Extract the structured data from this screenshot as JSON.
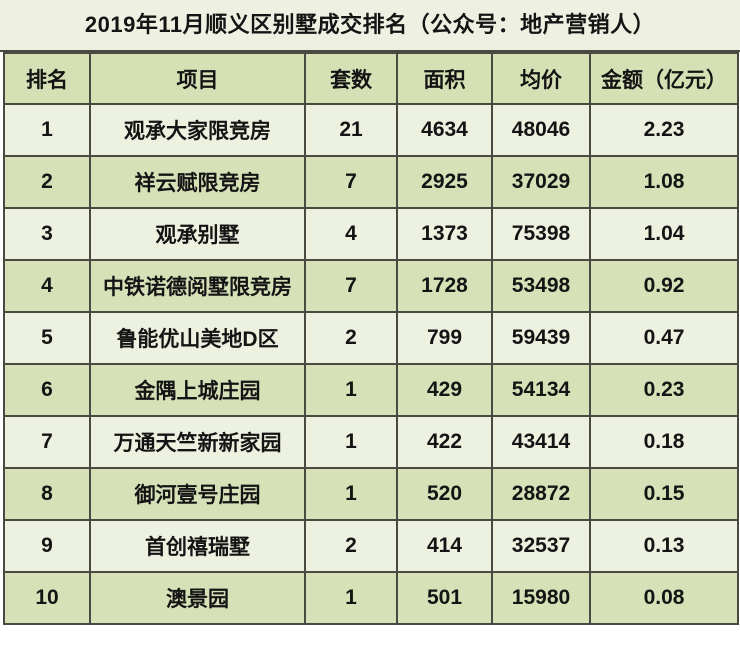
{
  "title": "2019年11月顺义区别墅成交排名（公众号：地产营销人）",
  "colors": {
    "title_bg": "#eef1e2",
    "header_bg": "#d5e0b4",
    "row_light_bg": "#edf1e0",
    "row_dark_bg": "#d7e1b8",
    "border": "#4a4a42",
    "text": "#141414"
  },
  "chart_data": {
    "type": "table",
    "title": "2019年11月顺义区别墅成交排名（公众号：地产营销人）",
    "columns": [
      "排名",
      "项目",
      "套数",
      "面积",
      "均价",
      "金额（亿元）"
    ],
    "rows": [
      [
        "1",
        "观承大家限竞房",
        "21",
        "4634",
        "48046",
        "2.23"
      ],
      [
        "2",
        "祥云赋限竞房",
        "7",
        "2925",
        "37029",
        "1.08"
      ],
      [
        "3",
        "观承别墅",
        "4",
        "1373",
        "75398",
        "1.04"
      ],
      [
        "4",
        "中铁诺德阅墅限竞房",
        "7",
        "1728",
        "53498",
        "0.92"
      ],
      [
        "5",
        "鲁能优山美地D区",
        "2",
        "799",
        "59439",
        "0.47"
      ],
      [
        "6",
        "金隅上城庄园",
        "1",
        "429",
        "54134",
        "0.23"
      ],
      [
        "7",
        "万通天竺新新家园",
        "1",
        "422",
        "43414",
        "0.18"
      ],
      [
        "8",
        "御河壹号庄园",
        "1",
        "520",
        "28872",
        "0.15"
      ],
      [
        "9",
        "首创禧瑞墅",
        "2",
        "414",
        "32537",
        "0.13"
      ],
      [
        "10",
        "澳景园",
        "1",
        "501",
        "15980",
        "0.08"
      ]
    ]
  }
}
